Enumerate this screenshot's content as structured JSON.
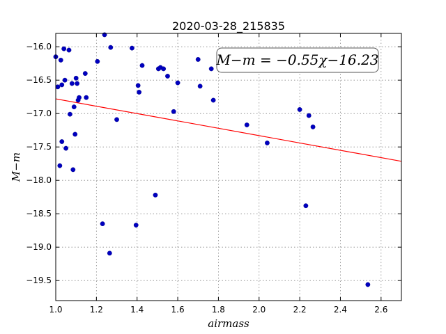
{
  "chart_data": {
    "type": "scatter",
    "title": "2020-03-28_215835",
    "xlabel": "airmass",
    "ylabel": "M−m",
    "xlim": [
      1.0,
      2.7
    ],
    "ylim": [
      -19.8,
      -15.8
    ],
    "y_inverted": false,
    "grid": true,
    "xticks": [
      1.0,
      1.2,
      1.4,
      1.6,
      1.8,
      2.0,
      2.2,
      2.4,
      2.6
    ],
    "xtick_labels": [
      "1.0",
      "1.2",
      "1.4",
      "1.6",
      "1.8",
      "2.0",
      "2.2",
      "2.4",
      "2.6"
    ],
    "yticks": [
      -16.0,
      -16.5,
      -17.0,
      -17.5,
      -18.0,
      -18.5,
      -19.0,
      -19.5
    ],
    "ytick_labels": [
      "−16.0",
      "−16.5",
      "−17.0",
      "−17.5",
      "−18.0",
      "−18.5",
      "−19.0",
      "−19.5"
    ],
    "annotation": "M−m = −0.55χ−16.23",
    "annotation_position": "top-right",
    "colors": {
      "points": "#0000bf",
      "fit": "#ff0000"
    },
    "fit_line": {
      "slope": -0.55,
      "intercept": -16.23
    },
    "series": [
      {
        "marker": "circle",
        "x": [
          1.0,
          1.01,
          1.02,
          1.025,
          1.03,
          1.03,
          1.04,
          1.045,
          1.05,
          1.065,
          1.07,
          1.08,
          1.085,
          1.09,
          1.095,
          1.1,
          1.105,
          1.11,
          1.115,
          1.145,
          1.15,
          1.205,
          1.23,
          1.24,
          1.265,
          1.27,
          1.3,
          1.375,
          1.395,
          1.405,
          1.41,
          1.425,
          1.49,
          1.505,
          1.515,
          1.53,
          1.55,
          1.58,
          1.6,
          1.7,
          1.71,
          1.765,
          1.775,
          1.94,
          2.04,
          2.2,
          2.23,
          2.245,
          2.265,
          2.535
        ],
        "y": [
          -16.15,
          -16.6,
          -17.78,
          -16.2,
          -17.42,
          -16.57,
          -16.03,
          -16.5,
          -17.52,
          -16.05,
          -17.01,
          -16.55,
          -17.84,
          -16.9,
          -17.31,
          -16.47,
          -16.55,
          -16.8,
          -16.76,
          -16.4,
          -16.76,
          -16.22,
          -18.65,
          -15.82,
          -19.09,
          -16.01,
          -17.09,
          -16.02,
          -18.67,
          -16.58,
          -16.68,
          -16.28,
          -18.22,
          -16.33,
          -16.31,
          -16.33,
          -16.44,
          -16.97,
          -16.54,
          -16.19,
          -16.59,
          -16.33,
          -16.8,
          -17.17,
          -17.44,
          -16.94,
          -18.38,
          -17.03,
          -17.2,
          -19.56
        ]
      }
    ]
  }
}
